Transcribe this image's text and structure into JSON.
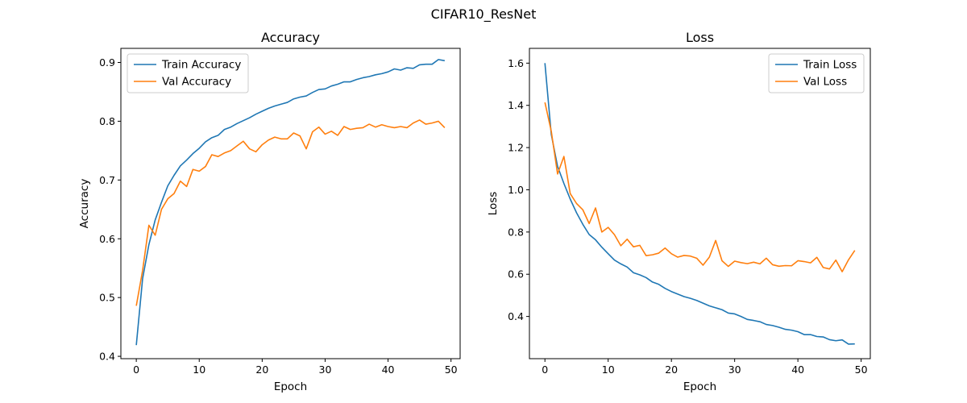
{
  "figure": {
    "title": "CIFAR10_ResNet"
  },
  "colors": {
    "train": "#1f77b4",
    "val": "#ff7f0e"
  },
  "chart_data": [
    {
      "type": "line",
      "title": "Accuracy",
      "xlabel": "Epoch",
      "ylabel": "Accuracy",
      "xlim": [
        -2.45,
        51.45
      ],
      "ylim": [
        0.396,
        0.924
      ],
      "xticks": [
        "0",
        "10",
        "20",
        "30",
        "40",
        "50"
      ],
      "yticks": [
        "0.4",
        "0.5",
        "0.6",
        "0.7",
        "0.8",
        "0.9"
      ],
      "legend": "upper-left",
      "grid": false,
      "x": [
        0,
        1,
        2,
        3,
        4,
        5,
        6,
        7,
        8,
        9,
        10,
        11,
        12,
        13,
        14,
        15,
        16,
        17,
        18,
        19,
        20,
        21,
        22,
        23,
        24,
        25,
        26,
        27,
        28,
        29,
        30,
        31,
        32,
        33,
        34,
        35,
        36,
        37,
        38,
        39,
        40,
        41,
        42,
        43,
        44,
        45,
        46,
        47,
        48,
        49
      ],
      "series": [
        {
          "name": "Train Accuracy",
          "color": "#1f77b4",
          "values": [
            0.419,
            0.532,
            0.59,
            0.632,
            0.662,
            0.69,
            0.708,
            0.724,
            0.734,
            0.745,
            0.754,
            0.765,
            0.772,
            0.776,
            0.786,
            0.79,
            0.796,
            0.801,
            0.806,
            0.812,
            0.817,
            0.822,
            0.826,
            0.829,
            0.832,
            0.838,
            0.841,
            0.843,
            0.849,
            0.854,
            0.855,
            0.86,
            0.863,
            0.867,
            0.867,
            0.871,
            0.874,
            0.876,
            0.879,
            0.881,
            0.884,
            0.889,
            0.887,
            0.891,
            0.89,
            0.896,
            0.897,
            0.897,
            0.905,
            0.903
          ]
        },
        {
          "name": "Val Accuracy",
          "color": "#ff7f0e",
          "values": [
            0.486,
            0.546,
            0.623,
            0.606,
            0.65,
            0.668,
            0.677,
            0.698,
            0.689,
            0.718,
            0.715,
            0.723,
            0.743,
            0.74,
            0.746,
            0.75,
            0.758,
            0.766,
            0.753,
            0.748,
            0.76,
            0.768,
            0.773,
            0.77,
            0.77,
            0.78,
            0.775,
            0.753,
            0.782,
            0.79,
            0.778,
            0.783,
            0.776,
            0.791,
            0.786,
            0.788,
            0.789,
            0.795,
            0.79,
            0.794,
            0.791,
            0.789,
            0.791,
            0.789,
            0.797,
            0.802,
            0.795,
            0.797,
            0.8,
            0.789
          ]
        }
      ]
    },
    {
      "type": "line",
      "title": "Loss",
      "xlabel": "Epoch",
      "ylabel": "Loss",
      "xlim": [
        -2.45,
        51.45
      ],
      "ylim": [
        0.2,
        1.67
      ],
      "xticks": [
        "0",
        "10",
        "20",
        "30",
        "40",
        "50"
      ],
      "yticks": [
        "0.4",
        "0.6",
        "0.8",
        "1.0",
        "1.2",
        "1.4",
        "1.6"
      ],
      "legend": "upper-right",
      "grid": false,
      "x": [
        0,
        1,
        2,
        3,
        4,
        5,
        6,
        7,
        8,
        9,
        10,
        11,
        12,
        13,
        14,
        15,
        16,
        17,
        18,
        19,
        20,
        21,
        22,
        23,
        24,
        25,
        26,
        27,
        28,
        29,
        30,
        31,
        32,
        33,
        34,
        35,
        36,
        37,
        38,
        39,
        40,
        41,
        42,
        43,
        44,
        45,
        46,
        47,
        48,
        49
      ],
      "series": [
        {
          "name": "Train Loss",
          "color": "#1f77b4",
          "values": [
            1.6,
            1.263,
            1.111,
            1.03,
            0.956,
            0.891,
            0.836,
            0.788,
            0.763,
            0.728,
            0.697,
            0.667,
            0.649,
            0.634,
            0.607,
            0.597,
            0.584,
            0.563,
            0.552,
            0.533,
            0.518,
            0.506,
            0.494,
            0.486,
            0.476,
            0.463,
            0.45,
            0.441,
            0.432,
            0.416,
            0.412,
            0.4,
            0.386,
            0.381,
            0.375,
            0.362,
            0.357,
            0.349,
            0.339,
            0.335,
            0.328,
            0.314,
            0.314,
            0.305,
            0.303,
            0.29,
            0.285,
            0.289,
            0.269,
            0.27
          ]
        },
        {
          "name": "Val Loss",
          "color": "#ff7f0e",
          "values": [
            1.414,
            1.278,
            1.075,
            1.158,
            0.982,
            0.935,
            0.905,
            0.84,
            0.914,
            0.8,
            0.822,
            0.787,
            0.735,
            0.766,
            0.73,
            0.737,
            0.688,
            0.692,
            0.7,
            0.724,
            0.697,
            0.681,
            0.689,
            0.686,
            0.676,
            0.643,
            0.681,
            0.76,
            0.664,
            0.637,
            0.662,
            0.655,
            0.65,
            0.657,
            0.649,
            0.676,
            0.645,
            0.638,
            0.641,
            0.64,
            0.664,
            0.66,
            0.654,
            0.68,
            0.632,
            0.625,
            0.667,
            0.612,
            0.668,
            0.713
          ]
        }
      ]
    }
  ]
}
